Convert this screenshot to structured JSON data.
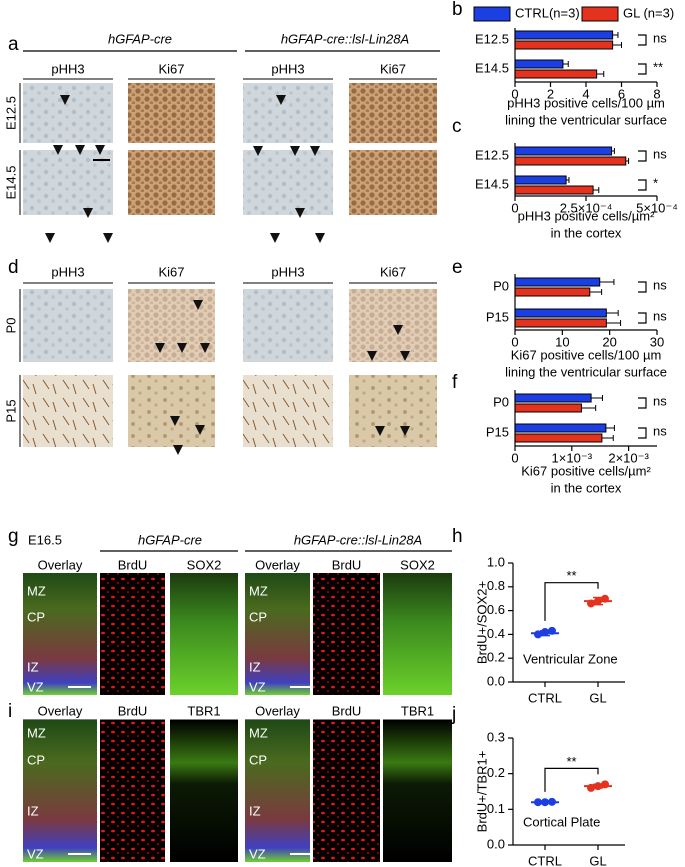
{
  "figure": {
    "panel_labels": [
      "a",
      "b",
      "c",
      "d",
      "e",
      "f",
      "g",
      "h",
      "i",
      "j"
    ],
    "a": {
      "genotypes": [
        "hGFAP-cre",
        "hGFAP-cre::lsl-Lin28A"
      ],
      "stains": [
        "pHH3",
        "Ki67",
        "pHH3",
        "Ki67"
      ],
      "rows": [
        "E12.5",
        "E14.5"
      ]
    },
    "d": {
      "stains": [
        "pHH3",
        "Ki67",
        "pHH3",
        "Ki67"
      ],
      "rows": [
        "P0",
        "P15"
      ]
    },
    "g": {
      "age": "E16.5",
      "genotypes": [
        "hGFAP-cre",
        "hGFAP-cre::lsl-Lin28A"
      ],
      "channels": [
        "Overlay",
        "BrdU",
        "SOX2",
        "Overlay",
        "BrdU",
        "SOX2"
      ],
      "zones": [
        "MZ",
        "CP",
        "IZ",
        "VZ"
      ]
    },
    "i": {
      "channels": [
        "Overlay",
        "BrdU",
        "TBR1",
        "Overlay",
        "BrdU",
        "TBR1"
      ],
      "zones": [
        "MZ",
        "CP",
        "IZ",
        "VZ"
      ]
    }
  },
  "chart_data": [
    {
      "type": "hbar",
      "categories": [
        "E12.5",
        "E14.5"
      ],
      "series": [
        {
          "name": "CTRL(n=3)",
          "color": "#1c3fe3",
          "values": [
            5.5,
            2.7
          ],
          "errors": [
            0.3,
            0.3
          ]
        },
        {
          "name": "GL (n=3)",
          "color": "#e5321f",
          "values": [
            5.5,
            4.6
          ],
          "errors": [
            0.5,
            0.4
          ]
        }
      ],
      "significance": [
        "ns",
        "**"
      ],
      "xlim": [
        0,
        8
      ],
      "xticks": [
        0,
        2,
        4,
        6,
        8
      ],
      "xlabel": [
        "pHH3 positive cells/100 µm",
        "lining the ventricular surface"
      ]
    },
    {
      "type": "hbar",
      "categories": [
        "E12.5",
        "E14.5"
      ],
      "series": [
        {
          "color": "#1c3fe3",
          "values": [
            0.00034,
            0.00018
          ],
          "errors": [
            1e-05,
            1e-05
          ]
        },
        {
          "color": "#e5321f",
          "values": [
            0.00039,
            0.000275
          ],
          "errors": [
            1e-05,
            2e-05
          ]
        }
      ],
      "significance": [
        "ns",
        "*"
      ],
      "xlim": [
        0,
        0.0005
      ],
      "xticks": [
        0,
        {
          "value": 0.00025,
          "label": "2.5×10⁻⁴"
        },
        {
          "value": 0.0005,
          "label": "5×10⁻⁴"
        }
      ],
      "xlabel": [
        "pHH3 positive cells/µm²",
        "in the cortex"
      ]
    },
    {
      "type": "hbar",
      "categories": [
        "P0",
        "P15"
      ],
      "series": [
        {
          "color": "#1c3fe3",
          "values": [
            17.9,
            19.3
          ],
          "errors": [
            3,
            2.5
          ]
        },
        {
          "color": "#e5321f",
          "values": [
            15.8,
            19.3
          ],
          "errors": [
            2.5,
            3
          ]
        }
      ],
      "significance": [
        "ns",
        "ns"
      ],
      "xlim": [
        0,
        30
      ],
      "xticks": [
        0,
        10,
        20,
        30
      ],
      "xlabel": [
        "Ki67 positive cells/100 µm",
        "lining the ventricular surface"
      ]
    },
    {
      "type": "hbar",
      "categories": [
        "P0",
        "P15"
      ],
      "series": [
        {
          "color": "#1c3fe3",
          "values": [
            0.00134,
            0.0016
          ],
          "errors": [
            0.0002,
            0.00015
          ]
        },
        {
          "color": "#e5321f",
          "values": [
            0.00117,
            0.00153
          ],
          "errors": [
            0.00025,
            0.0002
          ]
        }
      ],
      "significance": [
        "ns",
        "ns"
      ],
      "xlim": [
        0,
        0.0025
      ],
      "xticks": [
        0,
        {
          "value": 0.001,
          "label": "1×10⁻³"
        },
        {
          "value": 0.002,
          "label": "2×10⁻³"
        }
      ],
      "xlabel": [
        "Ki67 positive cells/µm²",
        "in the cortex"
      ]
    },
    {
      "type": "dot",
      "categories": [
        "CTRL",
        "GL"
      ],
      "colors": [
        "#1c3fe3",
        "#e5321f"
      ],
      "points": [
        [
          0.4,
          0.42,
          0.43
        ],
        [
          0.66,
          0.68,
          0.7
        ]
      ],
      "means": [
        0.41,
        0.68
      ],
      "errors": [
        0.02,
        0.03
      ],
      "ylim": [
        0,
        1.0
      ],
      "yticks": [
        {
          "value": 0,
          "label": "0.0"
        },
        0.2,
        0.4,
        0.6,
        0.8,
        {
          "value": 1.0,
          "label": "1.0"
        }
      ],
      "ylabel": "BrdU+/SOX2+",
      "annotation": "Ventricular Zone",
      "significance": "**"
    },
    {
      "type": "dot",
      "categories": [
        "CTRL",
        "GL"
      ],
      "colors": [
        "#1c3fe3",
        "#e5321f"
      ],
      "points": [
        [
          0.12,
          0.12,
          0.121
        ],
        [
          0.16,
          0.165,
          0.17
        ]
      ],
      "means": [
        0.12,
        0.165
      ],
      "errors": [
        0.003,
        0.005
      ],
      "ylim": [
        0,
        0.3
      ],
      "yticks": [
        {
          "value": 0,
          "label": "0.0"
        },
        0.1,
        0.2,
        0.3
      ],
      "ylabel": "BrdU+/TBR1+",
      "annotation": "Cortical Plate",
      "significance": "**"
    }
  ]
}
